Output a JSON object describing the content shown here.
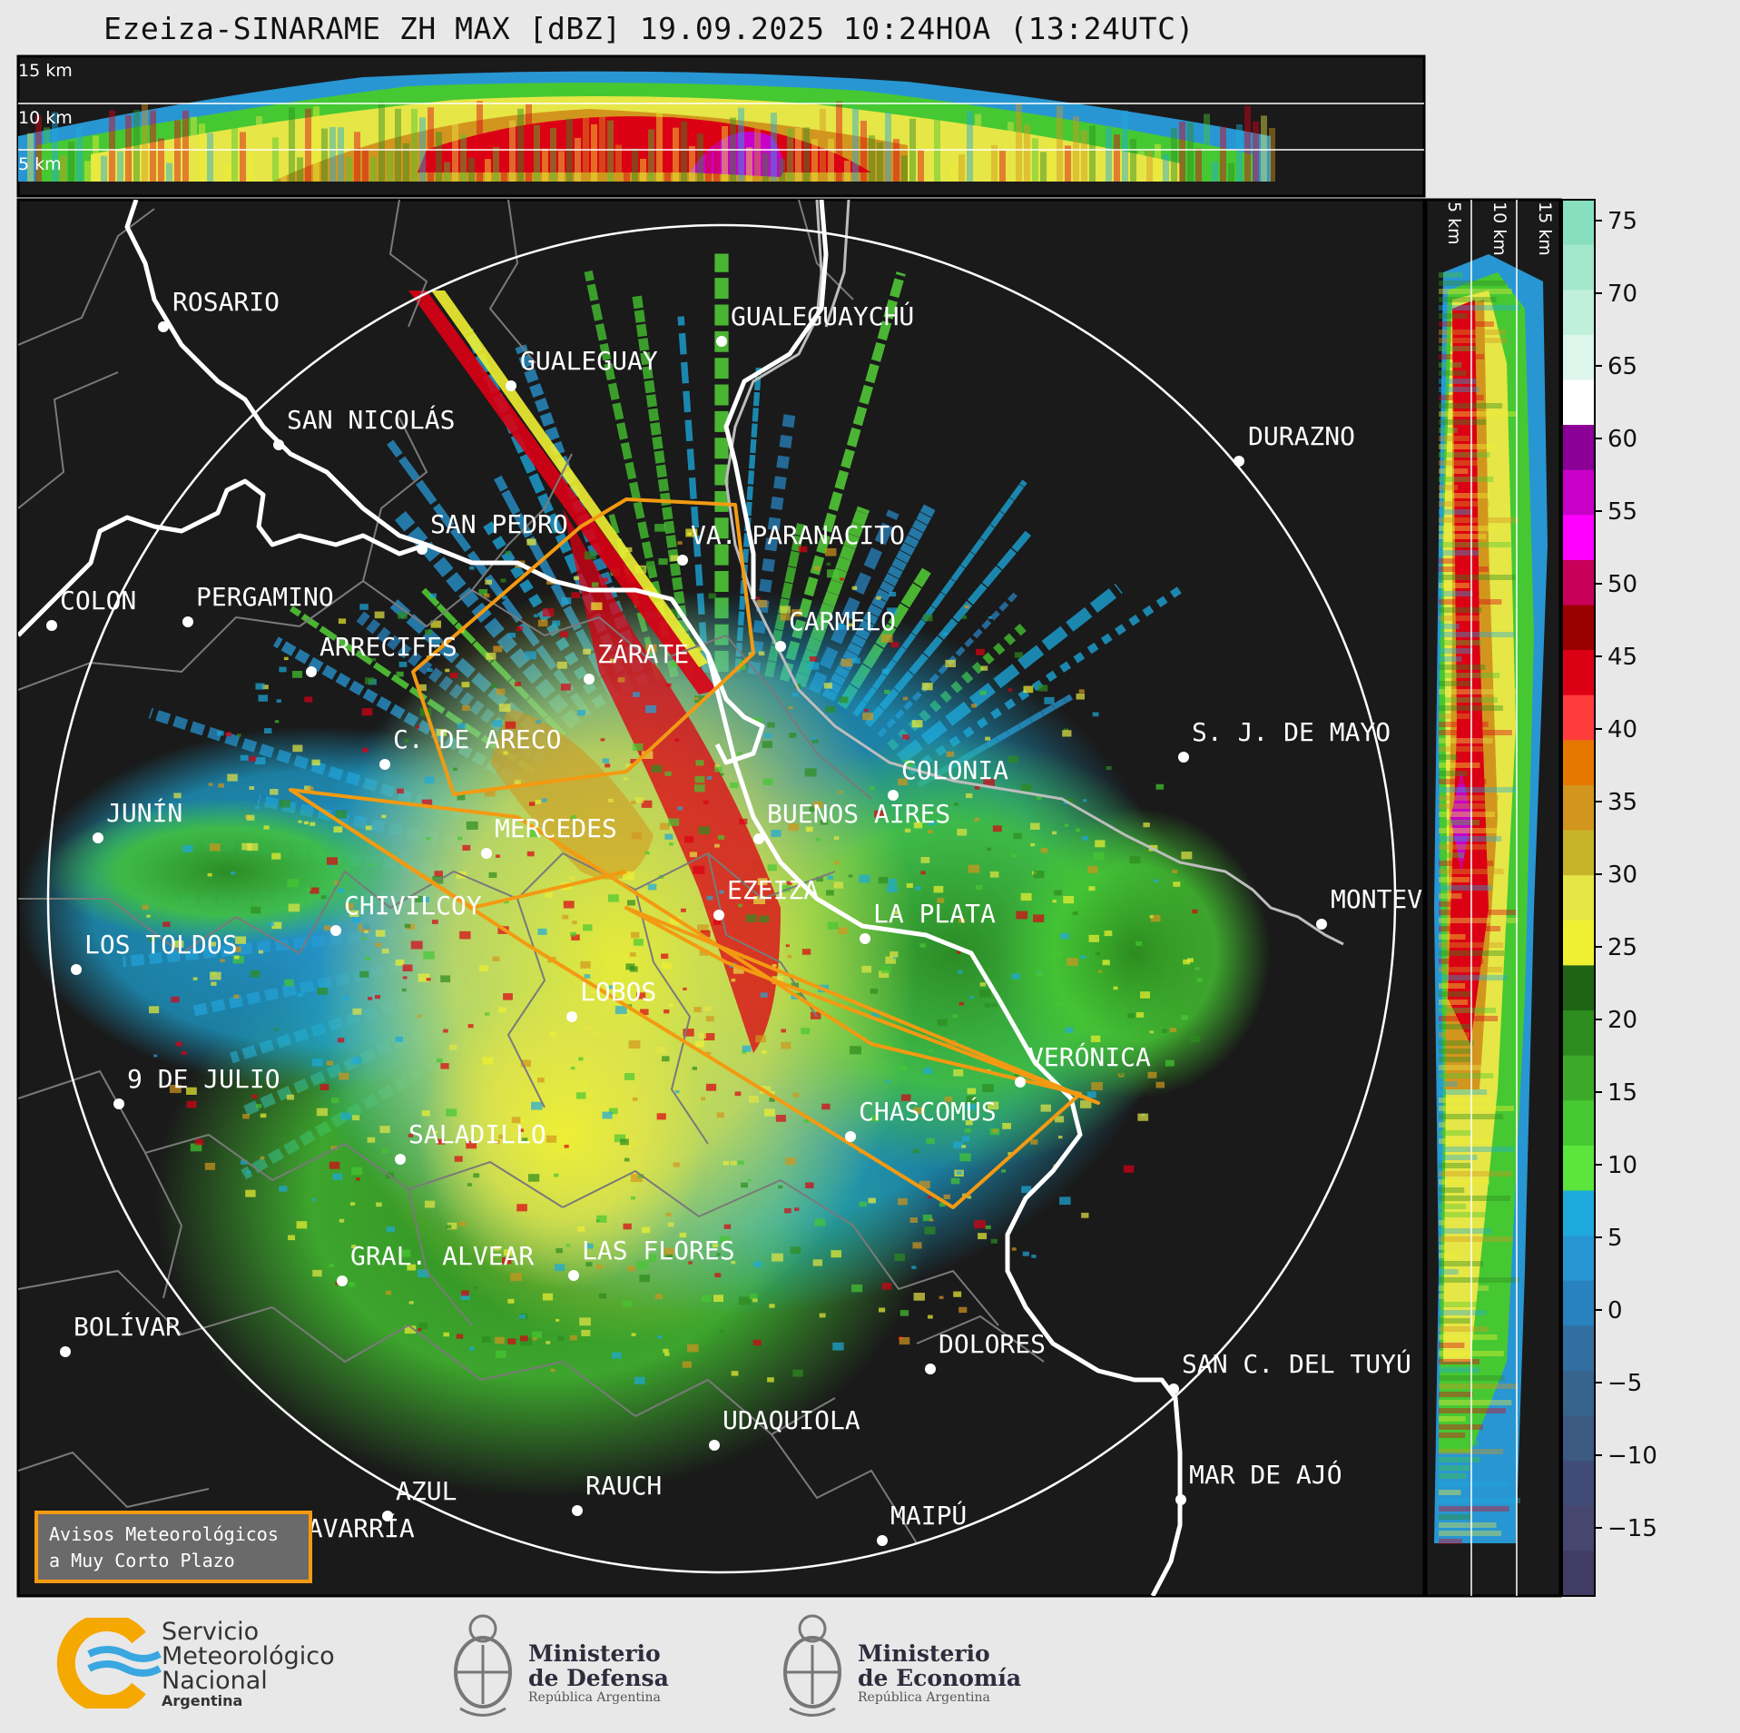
{
  "title": "Ezeiza-SINARAME ZH MAX [dBZ] 19.09.2025 10:24HOA (13:24UTC)",
  "top_panel": {
    "km_labels": [
      "15 km",
      "10 km",
      "5 km"
    ]
  },
  "side_panel": {
    "km_labels": [
      "5 km",
      "10 km",
      "15 km"
    ]
  },
  "colorbar": {
    "ticks": [
      "75",
      "70",
      "65",
      "60",
      "55",
      "50",
      "45",
      "40",
      "35",
      "30",
      "25",
      "20",
      "15",
      "10",
      "5",
      "0",
      "−5",
      "−10",
      "−15"
    ],
    "segments": [
      "#88dfc0",
      "#a3e7cd",
      "#c0efdc",
      "#ddf6eb",
      "#ffffff",
      "#8b0096",
      "#c800c8",
      "#ff00ff",
      "#c8005a",
      "#9b0000",
      "#dc0014",
      "#ff3c3c",
      "#e67800",
      "#d2961e",
      "#c8b428",
      "#e6e646",
      "#f0f032",
      "#1e6414",
      "#2d8c1e",
      "#3caa28",
      "#46c832",
      "#5ae63c",
      "#1eaadc",
      "#2896d2",
      "#2882be",
      "#326ea0",
      "#37648c",
      "#3c5a82",
      "#414b78",
      "#46466e",
      "#413c64"
    ]
  },
  "cities": [
    {
      "name": "ROSARIO"
    },
    {
      "name": "GUALEGUAYCHÚ"
    },
    {
      "name": "GUALEGUAY"
    },
    {
      "name": "SAN NICOLÁS"
    },
    {
      "name": "DURAZNO"
    },
    {
      "name": "SAN PEDRO"
    },
    {
      "name": "VA. PARANACITO"
    },
    {
      "name": "COLON"
    },
    {
      "name": "PERGAMINO"
    },
    {
      "name": "CARMELO"
    },
    {
      "name": "ARRECIFES"
    },
    {
      "name": "ZÁRATE"
    },
    {
      "name": "S. J. DE MAYO"
    },
    {
      "name": "C. DE ARECO"
    },
    {
      "name": "COLONIA"
    },
    {
      "name": "JUNÍN"
    },
    {
      "name": "BUENOS AIRES"
    },
    {
      "name": "MERCEDES"
    },
    {
      "name": "MONTEVIDEO"
    },
    {
      "name": "EZEIZA"
    },
    {
      "name": "CHIVILCOY"
    },
    {
      "name": "LA PLATA"
    },
    {
      "name": "LOS TOLDOS"
    },
    {
      "name": "LOBOS"
    },
    {
      "name": "VERÓNICA"
    },
    {
      "name": "9 DE JULIO"
    },
    {
      "name": "CHASCOMÚS"
    },
    {
      "name": "SALADILLO"
    },
    {
      "name": "GRAL. ALVEAR"
    },
    {
      "name": "LAS FLORES"
    },
    {
      "name": "BOLÍVAR"
    },
    {
      "name": "DOLORES"
    },
    {
      "name": "SAN C. DEL TUYÚ"
    },
    {
      "name": "UDAQUIOLA"
    },
    {
      "name": "MAR DE AJÓ"
    },
    {
      "name": "AZUL"
    },
    {
      "name": "RAUCH"
    },
    {
      "name": "MAIPÚ"
    },
    {
      "name": "OLAVARRÍA"
    }
  ],
  "legend_box": {
    "line1": "Avisos Meteorológicos",
    "line2": "a Muy Corto Plazo"
  },
  "logos": {
    "smn": {
      "line1": "Servicio",
      "line2": "Meteorológico",
      "line3": "Nacional",
      "line4": "Argentina"
    },
    "defensa": {
      "line1": "Ministerio",
      "line2": "de Defensa",
      "line3": "República Argentina"
    },
    "economia": {
      "line1": "Ministerio",
      "line2": "de Economía",
      "line3": "República Argentina"
    }
  }
}
